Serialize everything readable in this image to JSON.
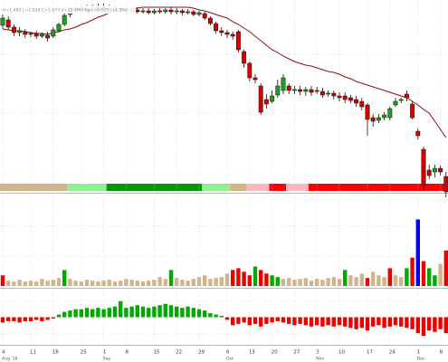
{
  "chart_data": [
    {
      "type": "candlestick",
      "header": "H=1.683  L=1.633  C=1.673  V=10.7M  Chg=+0.025 (+1.5%)",
      "categories": [
        "4",
        null,
        null,
        null,
        null,
        "11",
        null,
        null,
        null,
        "18",
        null,
        null,
        null,
        null,
        "25",
        null,
        null,
        null,
        "1",
        null,
        null,
        null,
        "8",
        null,
        null,
        null,
        null,
        "15",
        null,
        null,
        null,
        "22",
        null,
        null,
        null,
        "29",
        null,
        null,
        null,
        null,
        "6",
        null,
        null,
        null,
        "13",
        null,
        null,
        null,
        "20",
        null,
        null,
        null,
        "27",
        null,
        null,
        null,
        "3",
        null,
        null,
        null,
        "10",
        null,
        null,
        null,
        null,
        "17",
        null,
        null,
        null,
        "24",
        null,
        null,
        null,
        null,
        "1",
        null,
        null,
        null,
        "8",
        null
      ],
      "category_months": [
        "Aug '16",
        null,
        null,
        null,
        null,
        null,
        null,
        null,
        null,
        null,
        null,
        null,
        null,
        null,
        null,
        null,
        null,
        null,
        "Sep",
        null,
        null,
        null,
        null,
        null,
        null,
        null,
        null,
        null,
        null,
        null,
        null,
        null,
        null,
        null,
        null,
        null,
        null,
        null,
        null,
        null,
        "Oct",
        null,
        null,
        null,
        null,
        null,
        null,
        null,
        null,
        null,
        null,
        null,
        null,
        null,
        null,
        null,
        "Nov",
        null,
        null,
        null,
        null,
        null,
        null,
        null,
        null,
        null,
        null,
        null,
        null,
        null,
        null,
        null,
        null,
        null,
        "Dec",
        null,
        null,
        null,
        null,
        null
      ],
      "open": [
        192,
        198,
        190,
        184,
        185,
        182,
        183,
        180,
        181,
        180,
        186,
        193,
        204,
        208,
        210,
        208,
        211,
        209,
        212,
        210,
        211,
        208,
        210,
        208,
        209,
        207,
        208,
        206,
        208,
        207,
        209,
        207,
        208,
        206,
        207,
        204,
        205,
        200,
        194,
        186,
        184,
        182,
        185,
        163,
        150,
        134,
        125,
        110,
        108,
        115,
        120,
        125,
        120,
        121,
        119,
        121,
        120,
        119,
        116,
        117,
        114,
        114,
        112,
        110,
        108,
        104,
        90,
        87,
        90,
        90,
        104,
        109,
        116,
        105,
        75,
        55,
        32,
        30,
        34,
        25
      ],
      "high": [
        204,
        202,
        193,
        190,
        188,
        185,
        186,
        184,
        185,
        190,
        195,
        206,
        212,
        214,
        214,
        215,
        215,
        216,
        216,
        215,
        214,
        213,
        213,
        212,
        212,
        211,
        211,
        210,
        211,
        211,
        212,
        211,
        210,
        210,
        209,
        208,
        207,
        202,
        196,
        190,
        187,
        185,
        187,
        165,
        152,
        138,
        128,
        116,
        120,
        132,
        138,
        128,
        125,
        125,
        124,
        125,
        124,
        123,
        120,
        120,
        118,
        118,
        115,
        114,
        112,
        106,
        94,
        94,
        96,
        102,
        112,
        112,
        120,
        108,
        78,
        58,
        38,
        38,
        37,
        30
      ],
      "low": [
        188,
        187,
        180,
        180,
        178,
        179,
        177,
        178,
        174,
        178,
        184,
        191,
        201,
        205,
        205,
        206,
        206,
        207,
        207,
        208,
        206,
        206,
        206,
        206,
        205,
        205,
        204,
        204,
        205,
        205,
        204,
        204,
        203,
        204,
        202,
        202,
        198,
        192,
        183,
        180,
        178,
        176,
        162,
        145,
        130,
        128,
        93,
        100,
        106,
        112,
        116,
        116,
        116,
        115,
        114,
        114,
        116,
        112,
        113,
        110,
        108,
        106,
        106,
        102,
        98,
        70,
        80,
        84,
        87,
        87,
        102,
        106,
        108,
        88,
        66,
        10,
        22,
        24,
        26,
        2
      ],
      "close": [
        200,
        190,
        184,
        186,
        182,
        183,
        180,
        182,
        178,
        187,
        193,
        203,
        208,
        210,
        208,
        211,
        209,
        212,
        210,
        211,
        208,
        210,
        208,
        209,
        207,
        208,
        206,
        208,
        207,
        209,
        207,
        208,
        206,
        207,
        204,
        206,
        200,
        194,
        186,
        184,
        182,
        180,
        165,
        150,
        134,
        132,
        96,
        105,
        114,
        125,
        134,
        120,
        121,
        119,
        121,
        118,
        119,
        115,
        117,
        114,
        112,
        110,
        109,
        106,
        102,
        88,
        86,
        90,
        93,
        100,
        108,
        110,
        112,
        90,
        70,
        15,
        26,
        34,
        30,
        8
      ],
      "up_color": "#1f9e1f",
      "down_color": "#d40000",
      "ma_values": [
        188,
        187,
        186,
        186,
        185,
        184,
        183,
        183,
        182,
        184,
        185,
        187,
        188,
        190,
        193,
        195,
        198,
        201,
        203,
        206,
        208,
        209,
        210,
        210,
        211,
        212,
        212,
        212,
        212,
        212,
        212,
        212,
        212,
        212,
        211,
        209,
        208,
        206,
        204,
        202,
        200,
        196,
        193,
        189,
        185,
        180,
        175,
        170,
        165,
        162,
        158,
        155,
        152,
        150,
        148,
        147,
        145,
        143,
        141,
        140,
        138,
        135,
        133,
        130,
        128,
        126,
        124,
        122,
        120,
        118,
        116,
        114,
        112,
        108,
        104,
        99,
        95,
        86,
        77,
        68
      ],
      "ma_color": "#8b1010",
      "band": [
        {
          "color": "#d2b48c",
          "from": 0,
          "to": 11
        },
        {
          "color": "#90ee90",
          "from": 12,
          "to": 18
        },
        {
          "color": "#009900",
          "from": 19,
          "to": 35
        },
        {
          "color": "#90ee90",
          "from": 36,
          "to": 40
        },
        {
          "color": "#d2b48c",
          "from": 41,
          "to": 43
        },
        {
          "color": "#ffb6c1",
          "from": 44,
          "to": 47
        },
        {
          "color": "#ff0000",
          "from": 48,
          "to": 50
        },
        {
          "color": "#ffb6c1",
          "from": 51,
          "to": 54
        },
        {
          "color": "#ff0000",
          "from": 55,
          "to": 79
        }
      ],
      "ylim": [
        0,
        220
      ]
    },
    {
      "type": "bar",
      "values": [
        12,
        6,
        5,
        7,
        5,
        6,
        5,
        8,
        6,
        7,
        9,
        18,
        8,
        6,
        5,
        7,
        6,
        5,
        6,
        7,
        5,
        6,
        8,
        7,
        6,
        5,
        6,
        7,
        10,
        8,
        18,
        9,
        7,
        6,
        8,
        10,
        12,
        8,
        9,
        10,
        14,
        18,
        20,
        16,
        12,
        22,
        18,
        14,
        12,
        10,
        8,
        9,
        7,
        8,
        9,
        6,
        8,
        7,
        9,
        10,
        8,
        18,
        12,
        10,
        14,
        9,
        16,
        12,
        10,
        20,
        12,
        10,
        20,
        32,
        75,
        28,
        20,
        12,
        25,
        40
      ],
      "colors": [
        "#ee0000",
        "#d2b48c",
        "#d2b48c",
        "#d2b48c",
        "#d2b48c",
        "#d2b48c",
        "#d2b48c",
        "#d2b48c",
        "#d2b48c",
        "#d2b48c",
        "#d2b48c",
        "#00aa00",
        "#d2b48c",
        "#d2b48c",
        "#d2b48c",
        "#d2b48c",
        "#d2b48c",
        "#d2b48c",
        "#d2b48c",
        "#d2b48c",
        "#d2b48c",
        "#d2b48c",
        "#d2b48c",
        "#d2b48c",
        "#d2b48c",
        "#d2b48c",
        "#d2b48c",
        "#d2b48c",
        "#d2b48c",
        "#d2b48c",
        "#00aa00",
        "#d2b48c",
        "#d2b48c",
        "#d2b48c",
        "#d2b48c",
        "#d2b48c",
        "#d2b48c",
        "#d2b48c",
        "#d2b48c",
        "#d2b48c",
        "#d2b48c",
        "#ee0000",
        "#ee0000",
        "#ee0000",
        "#ee0000",
        "#00aa00",
        "#ee0000",
        "#ee0000",
        "#00aa00",
        "#00aa00",
        "#d2b48c",
        "#d2b48c",
        "#d2b48c",
        "#d2b48c",
        "#d2b48c",
        "#d2b48c",
        "#d2b48c",
        "#d2b48c",
        "#d2b48c",
        "#d2b48c",
        "#d2b48c",
        "#00aa00",
        "#d2b48c",
        "#d2b48c",
        "#d2b48c",
        "#ee0000",
        "#d2b48c",
        "#d2b48c",
        "#d2b48c",
        "#ee0000",
        "#d2b48c",
        "#d2b48c",
        "#00aa00",
        "#ee0000",
        "#0000ee",
        "#ee0000",
        "#00aa00",
        "#00aa00",
        "#d2b48c",
        "#ee0000"
      ],
      "ylim": [
        0,
        100
      ]
    },
    {
      "type": "histogram",
      "values": [
        -4,
        -3,
        -3,
        -4,
        -3,
        -3,
        -2,
        -3,
        -2,
        -1,
        2,
        4,
        5,
        6,
        6,
        7,
        6,
        7,
        6,
        7,
        8,
        12,
        7,
        8,
        9,
        8,
        7,
        8,
        9,
        10,
        9,
        8,
        7,
        8,
        7,
        6,
        5,
        3,
        2,
        1,
        -2,
        -6,
        -5,
        -4,
        -6,
        -5,
        -7,
        -5,
        -4,
        -3,
        -4,
        -5,
        -6,
        -5,
        -6,
        -7,
        -6,
        -7,
        -6,
        -7,
        -6,
        -7,
        -8,
        -9,
        -8,
        -10,
        -7,
        -6,
        -8,
        -7,
        -6,
        -7,
        -8,
        -9,
        -12,
        -14,
        -10,
        -11,
        -9,
        -12
      ],
      "pos_color": "#00aa00",
      "neg_color": "#ee0000",
      "ylim": [
        -20,
        20
      ]
    }
  ]
}
